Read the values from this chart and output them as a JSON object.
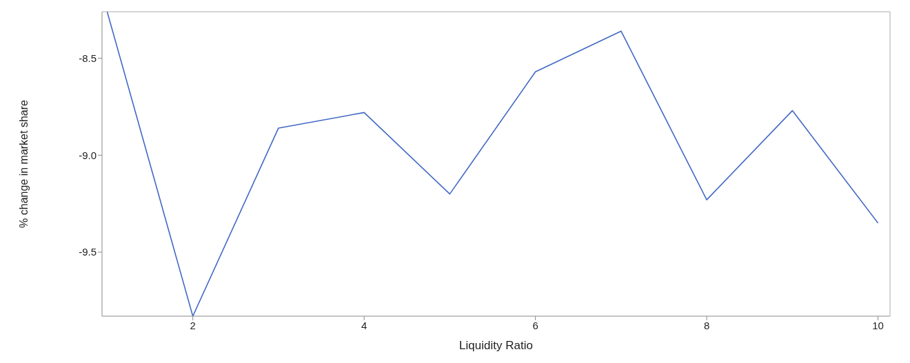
{
  "chart_data": {
    "type": "line",
    "xlabel": "Liquidity Ratio",
    "ylabel": "% change in market share",
    "x": [
      1,
      2,
      3,
      4,
      5,
      6,
      7,
      8,
      9,
      10
    ],
    "series": [
      {
        "color": "#4168c4",
        "values": [
          -8.26,
          -9.83,
          -8.86,
          -8.78,
          -9.2,
          -8.57,
          -8.36,
          -9.23,
          -8.77,
          -9.35
        ]
      }
    ],
    "xlim": [
      0.94,
      10.14
    ],
    "xticks": [
      2,
      4,
      6,
      8,
      10
    ],
    "ylim": [
      -9.83,
      -8.26
    ],
    "yticks": [
      {
        "value": -9.5,
        "label": "-9.5"
      },
      {
        "value": -9,
        "label": "-9.0"
      },
      {
        "value": -8.5,
        "label": "-8.5"
      }
    ],
    "grid": false,
    "legend": false,
    "marker": "none",
    "line_style": "solid"
  }
}
